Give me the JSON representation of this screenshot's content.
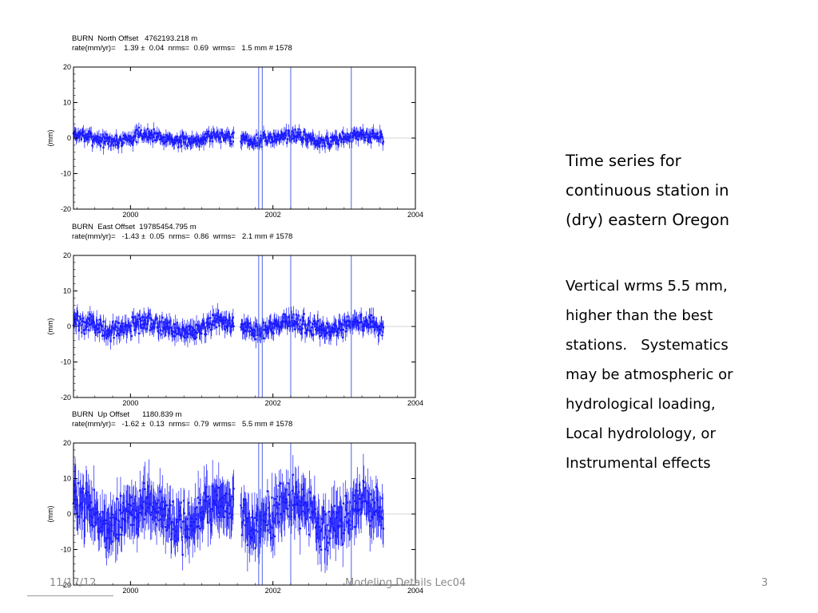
{
  "slide": {
    "caption_title": [
      "Time series for",
      "continuous station in",
      "(dry) eastern Oregon"
    ],
    "caption_body": [
      "Vertical wrms 5.5 mm,",
      "higher than the best",
      "stations.   Systematics",
      "may be atmospheric or",
      "hydrological loading,",
      "Local hydrolology, or",
      "Instrumental effects"
    ],
    "footer_date": "11/17/12",
    "footer_title": "Modeling Details Lec04",
    "page_number": "3"
  },
  "colors": {
    "data": "#1a1aff",
    "event_line": "#4f64e6",
    "axis": "#000000"
  },
  "chart_data": [
    {
      "type": "scatter",
      "station": "BURN",
      "header_line1": "BURN  North Offset   4762193.218 m",
      "header_line2": "rate(mm/yr)=    1.39 ±  0.04  nrms=  0.69  wrms=   1.5 mm # 1578",
      "ylabel": "(mm)",
      "ylim": [
        -20,
        20
      ],
      "yticks": [
        "20",
        "10",
        "0",
        "-10",
        "-20"
      ],
      "xlim": [
        1999.2,
        2004
      ],
      "xticks": [
        "2000",
        "2002",
        "2004"
      ],
      "wrms_mm": 1.5,
      "rate_mm_per_yr": 1.39,
      "data_range": [
        1999.2,
        2003.55
      ],
      "gaps": [
        [
          2001.45,
          2001.55
        ]
      ],
      "event_lines": [
        2001.8,
        2001.85,
        2002.25,
        2003.1
      ]
    },
    {
      "type": "scatter",
      "station": "BURN",
      "header_line1": "BURN  East Offset  19785454.795 m",
      "header_line2": "rate(mm/yr)=   -1.43 ±  0.05  nrms=  0.86  wrms=   2.1 mm # 1578",
      "ylabel": "(mm)",
      "ylim": [
        -20,
        20
      ],
      "yticks": [
        "20",
        "10",
        "0",
        "-10",
        "-20"
      ],
      "xlim": [
        1999.2,
        2004
      ],
      "xticks": [
        "2000",
        "2002",
        "2004"
      ],
      "wrms_mm": 2.1,
      "rate_mm_per_yr": -1.43,
      "data_range": [
        1999.2,
        2003.55
      ],
      "gaps": [
        [
          2001.45,
          2001.55
        ]
      ],
      "event_lines": [
        2001.8,
        2001.85,
        2002.25,
        2003.1
      ]
    },
    {
      "type": "scatter",
      "station": "BURN",
      "header_line1": "BURN  Up Offset      1180.839 m",
      "header_line2": "rate(mm/yr)=   -1.62 ±  0.13  nrms=  0.79  wrms=   5.5 mm # 1578",
      "ylabel": "(mm)",
      "ylim": [
        -20,
        20
      ],
      "yticks": [
        "20",
        "10",
        "0",
        "-10",
        "-20"
      ],
      "xlim": [
        1999.2,
        2004
      ],
      "xticks": [
        "2000",
        "2002",
        "2004"
      ],
      "wrms_mm": 5.5,
      "rate_mm_per_yr": -1.62,
      "data_range": [
        1999.2,
        2003.55
      ],
      "gaps": [
        [
          2001.45,
          2001.55
        ]
      ],
      "event_lines": [
        2001.8,
        2001.85,
        2002.25,
        2003.1
      ]
    }
  ]
}
